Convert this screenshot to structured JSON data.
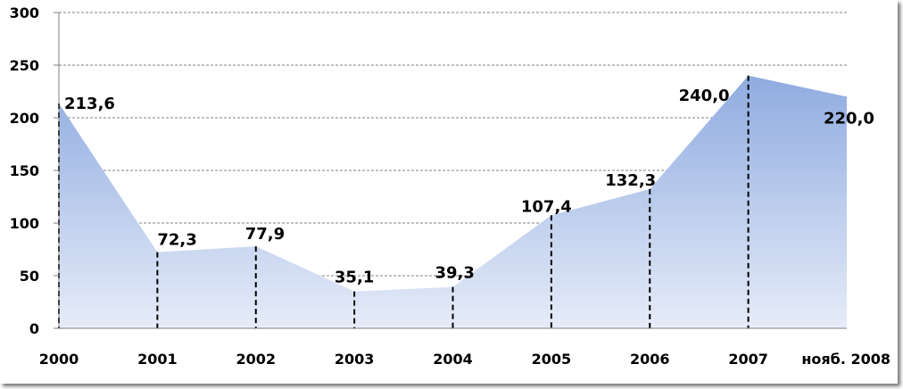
{
  "chart_data": {
    "type": "area",
    "categories": [
      "2000",
      "2001",
      "2002",
      "2003",
      "2004",
      "2005",
      "2006",
      "2007",
      "нояб. 2008"
    ],
    "values": [
      213.6,
      72.3,
      77.9,
      35.1,
      39.3,
      107.4,
      132.3,
      240.0,
      220.0
    ],
    "data_labels": [
      "213,6",
      "72,3",
      "77,9",
      "35,1",
      "39,3",
      "107,4",
      "132,3",
      "240,0",
      "220,0"
    ],
    "y_ticks": [
      0,
      50,
      100,
      150,
      200,
      250,
      300
    ],
    "ylim": [
      0,
      300
    ],
    "grid": true,
    "drop_lines": true,
    "fill_color_top": "#8fabe0",
    "fill_color_bottom": "#e6ecf8",
    "grid_color": "#808080"
  }
}
